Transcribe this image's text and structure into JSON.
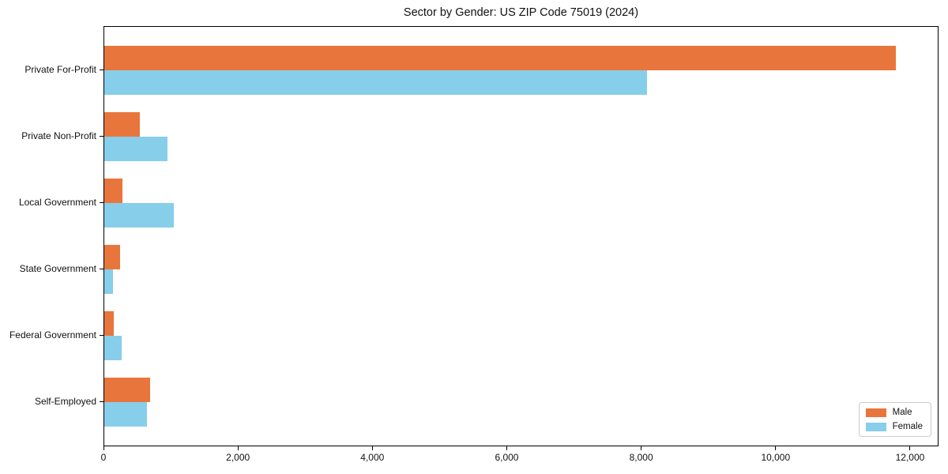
{
  "chart_data": {
    "type": "bar",
    "orientation": "horizontal",
    "title": "Sector by Gender: US ZIP Code 75019 (2024)",
    "categories": [
      "Private For-Profit",
      "Private Non-Profit",
      "Local Government",
      "State Government",
      "Federal Government",
      "Self-Employed"
    ],
    "series": [
      {
        "name": "Male",
        "color": "#e8763c",
        "values": [
          11780,
          530,
          270,
          230,
          140,
          680
        ]
      },
      {
        "name": "Female",
        "color": "#87ceeb",
        "values": [
          8080,
          940,
          1030,
          135,
          255,
          640
        ]
      }
    ],
    "xlabel": "",
    "ylabel": "",
    "xlim": [
      0,
      12400
    ],
    "xticks": [
      0,
      2000,
      4000,
      6000,
      8000,
      10000,
      12000
    ],
    "xtick_labels": [
      "0",
      "2,000",
      "4,000",
      "6,000",
      "8,000",
      "10,000",
      "12,000"
    ],
    "grid": false,
    "legend": {
      "position": "lower-right",
      "entries": [
        "Male",
        "Female"
      ]
    },
    "colors": {
      "axis": "#000000",
      "background": "#ffffff",
      "legend_border": "#cccccc"
    }
  }
}
